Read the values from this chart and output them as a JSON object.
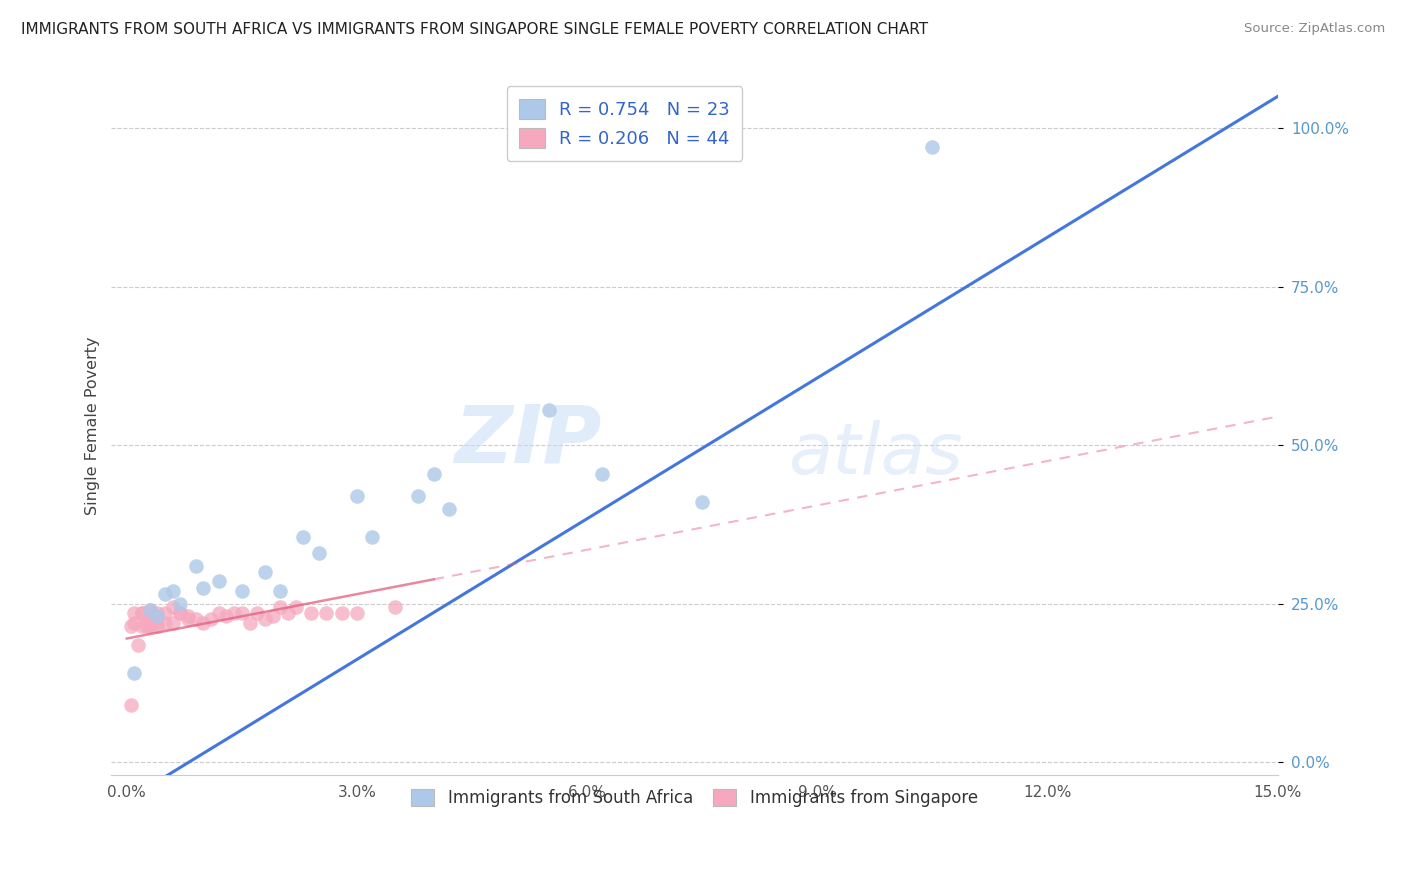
{
  "title": "IMMIGRANTS FROM SOUTH AFRICA VS IMMIGRANTS FROM SINGAPORE SINGLE FEMALE POVERTY CORRELATION CHART",
  "source": "Source: ZipAtlas.com",
  "ylabel": "Single Female Poverty",
  "legend_label_1": "Immigrants from South Africa",
  "legend_label_2": "Immigrants from Singapore",
  "R1": 0.754,
  "N1": 23,
  "R2": 0.206,
  "N2": 44,
  "xlim": [
    0.0,
    0.15
  ],
  "ylim": [
    0.0,
    1.08
  ],
  "xticks": [
    0.0,
    0.03,
    0.06,
    0.09,
    0.12,
    0.15
  ],
  "xtick_labels": [
    "0.0%",
    "3.0%",
    "6.0%",
    "9.0%",
    "12.0%",
    "15.0%"
  ],
  "yticks": [
    0.0,
    0.25,
    0.5,
    0.75,
    1.0
  ],
  "ytick_labels": [
    "0.0%",
    "25.0%",
    "50.0%",
    "75.0%",
    "100.0%"
  ],
  "color_blue": "#adc8e8",
  "color_pink": "#f5a8be",
  "color_blue_line": "#4477dd",
  "color_pink_line": "#e06080",
  "watermark_zip": "ZIP",
  "watermark_atlas": "atlas",
  "blue_line_x": [
    0.0,
    0.15
  ],
  "blue_line_y": [
    -0.06,
    1.05
  ],
  "pink_line_x": [
    0.0,
    0.15
  ],
  "pink_line_y": [
    0.195,
    0.545
  ],
  "south_africa_x": [
    0.001,
    0.003,
    0.004,
    0.005,
    0.006,
    0.007,
    0.009,
    0.01,
    0.012,
    0.015,
    0.018,
    0.02,
    0.023,
    0.025,
    0.03,
    0.032,
    0.038,
    0.04,
    0.042,
    0.055,
    0.062,
    0.075,
    0.105
  ],
  "south_africa_y": [
    0.14,
    0.24,
    0.23,
    0.265,
    0.27,
    0.25,
    0.31,
    0.275,
    0.285,
    0.27,
    0.3,
    0.27,
    0.355,
    0.33,
    0.42,
    0.355,
    0.42,
    0.455,
    0.4,
    0.555,
    0.455,
    0.41,
    0.97
  ],
  "singapore_x": [
    0.0005,
    0.001,
    0.001,
    0.0015,
    0.002,
    0.002,
    0.002,
    0.0025,
    0.003,
    0.003,
    0.003,
    0.003,
    0.003,
    0.004,
    0.004,
    0.004,
    0.005,
    0.005,
    0.006,
    0.006,
    0.007,
    0.007,
    0.008,
    0.008,
    0.009,
    0.01,
    0.011,
    0.012,
    0.013,
    0.014,
    0.015,
    0.016,
    0.017,
    0.018,
    0.019,
    0.02,
    0.021,
    0.022,
    0.024,
    0.026,
    0.028,
    0.03,
    0.035,
    0.0005
  ],
  "singapore_y": [
    0.215,
    0.22,
    0.235,
    0.185,
    0.215,
    0.235,
    0.235,
    0.215,
    0.23,
    0.24,
    0.225,
    0.215,
    0.215,
    0.22,
    0.235,
    0.215,
    0.235,
    0.22,
    0.245,
    0.22,
    0.235,
    0.235,
    0.225,
    0.23,
    0.225,
    0.22,
    0.225,
    0.235,
    0.23,
    0.235,
    0.235,
    0.22,
    0.235,
    0.225,
    0.23,
    0.245,
    0.235,
    0.245,
    0.235,
    0.235,
    0.235,
    0.235,
    0.245,
    0.09
  ]
}
